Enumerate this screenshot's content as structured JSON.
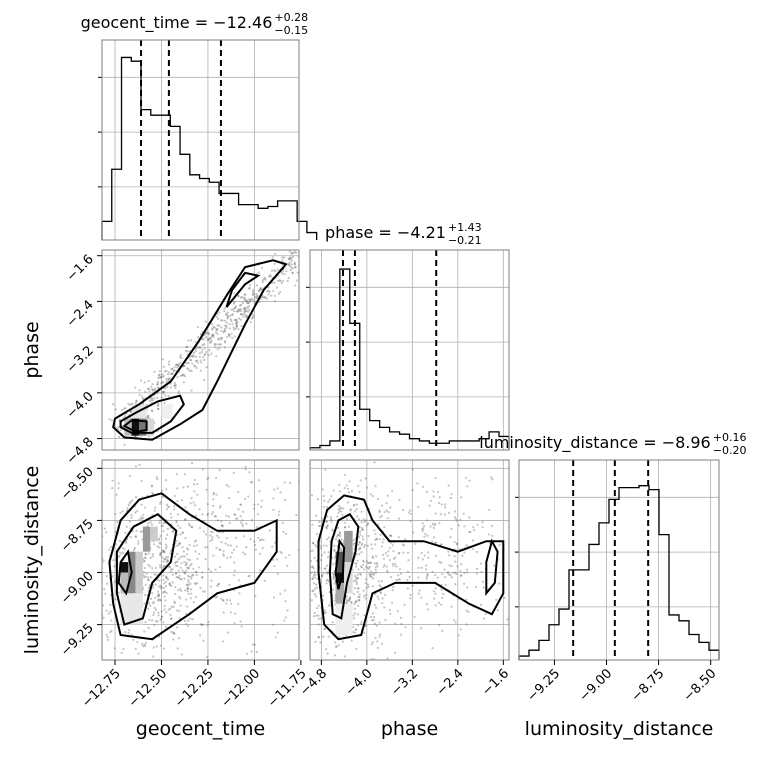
{
  "chart_data": {
    "type": "corner",
    "parameters": [
      {
        "key": "geocent_time",
        "label": "geocent_time",
        "title_main": "geocent_time = −12.46",
        "title_plus": "+0.28",
        "title_minus": "−0.15",
        "range": [
          -12.82,
          -11.76
        ],
        "ticks": [
          -12.75,
          -12.5,
          -12.25,
          -12.0,
          -11.75
        ],
        "tick_labels": [
          "−12.75",
          "−12.50",
          "−12.25",
          "−12.00",
          "−11.75"
        ],
        "quantiles": [
          -12.61,
          -12.46,
          -12.18
        ],
        "hist": {
          "edges_start": -12.82,
          "bin_width": 0.0525,
          "counts": [
            0.1,
            0.38,
            0.98,
            0.96,
            0.7,
            0.67,
            0.67,
            0.61,
            0.46,
            0.35,
            0.33,
            0.31,
            0.25,
            0.25,
            0.19,
            0.19,
            0.17,
            0.18,
            0.21,
            0.21,
            0.1,
            0.04
          ],
          "ymax": 1.02
        }
      },
      {
        "key": "phase",
        "label": "phase",
        "title_main": "phase = −4.21",
        "title_plus": "+1.43",
        "title_minus": "−0.21",
        "range": [
          -5.0,
          -1.5
        ],
        "ticks": [
          -4.8,
          -4.0,
          -3.2,
          -2.4,
          -1.6
        ],
        "tick_labels": [
          "−4.8",
          "−4.0",
          "−3.2",
          "−2.4",
          "−1.6"
        ],
        "quantiles": [
          -4.42,
          -4.21,
          -2.78
        ],
        "hist": {
          "edges_start": -5.0,
          "bin_width": 0.175,
          "counts": [
            0.01,
            0.02,
            0.04,
            0.8,
            0.56,
            0.18,
            0.13,
            0.1,
            0.08,
            0.07,
            0.05,
            0.04,
            0.03,
            0.03,
            0.04,
            0.04,
            0.04,
            0.05,
            0.08,
            0.06
          ],
          "ymax": 0.84
        }
      },
      {
        "key": "luminosity_distance",
        "label": "luminosity_distance",
        "title_main": "luminosity_distance = −8.96",
        "title_plus": "+0.16",
        "title_minus": "−0.20",
        "range": [
          -9.42,
          -8.46
        ],
        "ticks": [
          -9.25,
          -9.0,
          -8.75,
          -8.5
        ],
        "tick_labels": [
          "−9.25",
          "−9.00",
          "−8.75",
          "−8.50"
        ],
        "quantiles": [
          -9.16,
          -8.96,
          -8.8
        ],
        "hist": {
          "edges_start": -9.42,
          "bin_width": 0.048,
          "counts": [
            0.02,
            0.05,
            0.1,
            0.18,
            0.26,
            0.46,
            0.46,
            0.59,
            0.7,
            0.82,
            0.88,
            0.88,
            0.89,
            0.87,
            0.64,
            0.23,
            0.2,
            0.13,
            0.09,
            0.05
          ],
          "ymax": 0.97
        }
      }
    ],
    "diag_ticks_frac": [
      0.32,
      0.65,
      0.98
    ],
    "grid": true,
    "pairs": [
      {
        "x": "geocent_time",
        "y": "phase"
      },
      {
        "x": "geocent_time",
        "y": "luminosity_distance"
      },
      {
        "x": "phase",
        "y": "luminosity_distance"
      }
    ]
  }
}
